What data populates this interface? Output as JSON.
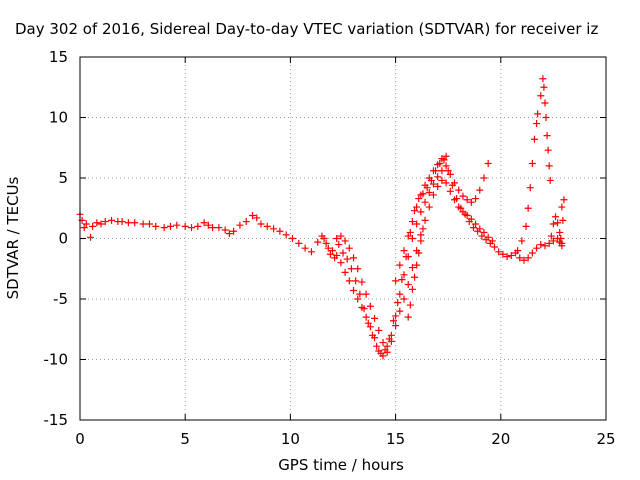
{
  "chart_data": {
    "type": "scatter",
    "title": "Day 302 of 2016, Sidereal Day-to-day VTEC variation (SDTVAR) for receiver iz",
    "xlabel": "GPS time / hours",
    "ylabel": "SDTVAR / TECUs",
    "xlim": [
      0,
      25
    ],
    "ylim": [
      -15,
      15
    ],
    "xticks": [
      "0",
      "5",
      "10",
      "15",
      "20",
      "25"
    ],
    "yticks": [
      "15",
      "10",
      "5",
      "0",
      "-5",
      "-10",
      "-15"
    ],
    "grid": true,
    "marker": "+",
    "color": "#ff0000",
    "series": [
      {
        "points": [
          [
            0.0,
            2.0
          ],
          [
            0.1,
            1.5
          ],
          [
            0.2,
            0.9
          ],
          [
            0.3,
            1.2
          ],
          [
            0.5,
            0.1
          ],
          [
            0.6,
            1.0
          ],
          [
            0.8,
            1.3
          ],
          [
            1.0,
            1.2
          ],
          [
            1.2,
            1.4
          ],
          [
            1.5,
            1.5
          ],
          [
            1.8,
            1.4
          ],
          [
            2.0,
            1.4
          ],
          [
            2.3,
            1.3
          ],
          [
            2.6,
            1.3
          ],
          [
            3.0,
            1.2
          ],
          [
            3.3,
            1.2
          ],
          [
            3.6,
            1.0
          ],
          [
            4.0,
            0.9
          ],
          [
            4.3,
            1.0
          ],
          [
            4.6,
            1.1
          ],
          [
            5.0,
            1.0
          ],
          [
            5.3,
            0.9
          ],
          [
            5.6,
            1.0
          ],
          [
            5.9,
            1.3
          ],
          [
            6.1,
            1.1
          ],
          [
            6.3,
            0.9
          ],
          [
            6.6,
            0.9
          ],
          [
            6.9,
            0.7
          ],
          [
            7.1,
            0.4
          ],
          [
            7.3,
            0.6
          ],
          [
            7.6,
            1.1
          ],
          [
            7.9,
            1.4
          ],
          [
            8.2,
            1.9
          ],
          [
            8.4,
            1.7
          ],
          [
            8.6,
            1.2
          ],
          [
            8.9,
            1.0
          ],
          [
            9.2,
            0.8
          ],
          [
            9.5,
            0.6
          ],
          [
            9.8,
            0.3
          ],
          [
            10.1,
            0.0
          ],
          [
            10.4,
            -0.4
          ],
          [
            10.7,
            -0.8
          ],
          [
            11.0,
            -1.1
          ],
          [
            11.3,
            -0.3
          ],
          [
            11.5,
            0.2
          ],
          [
            11.7,
            -0.4
          ],
          [
            11.9,
            -1.3
          ],
          [
            12.1,
            -1.6
          ],
          [
            12.3,
            -0.5
          ],
          [
            12.5,
            -1.2
          ],
          [
            12.7,
            -1.7
          ],
          [
            12.9,
            -2.5
          ],
          [
            13.1,
            -3.5
          ],
          [
            13.3,
            -4.6
          ],
          [
            13.5,
            -5.8
          ],
          [
            13.7,
            -7.0
          ],
          [
            13.9,
            -8.0
          ],
          [
            14.1,
            -8.9
          ],
          [
            14.3,
            -9.5
          ],
          [
            14.5,
            -9.2
          ],
          [
            14.7,
            -8.3
          ],
          [
            14.9,
            -6.8
          ],
          [
            15.1,
            -5.3
          ],
          [
            15.3,
            -3.4
          ],
          [
            15.5,
            -1.5
          ],
          [
            15.7,
            0.5
          ],
          [
            15.9,
            2.3
          ],
          [
            16.1,
            3.3
          ],
          [
            16.3,
            3.7
          ],
          [
            16.5,
            4.2
          ],
          [
            16.7,
            4.8
          ],
          [
            16.9,
            5.6
          ],
          [
            17.1,
            6.2
          ],
          [
            17.3,
            6.5
          ],
          [
            17.5,
            5.6
          ],
          [
            17.7,
            4.4
          ],
          [
            17.9,
            3.3
          ],
          [
            18.1,
            2.5
          ],
          [
            18.3,
            2.0
          ],
          [
            18.5,
            1.4
          ],
          [
            18.7,
            0.9
          ],
          [
            18.9,
            0.6
          ],
          [
            19.1,
            0.2
          ],
          [
            19.3,
            -0.1
          ],
          [
            19.5,
            -0.4
          ],
          [
            19.7,
            -0.7
          ],
          [
            19.9,
            -1.1
          ],
          [
            20.1,
            -1.3
          ],
          [
            20.3,
            -1.5
          ],
          [
            20.5,
            -1.4
          ],
          [
            20.7,
            -1.2
          ],
          [
            20.9,
            -1.6
          ],
          [
            21.1,
            -1.8
          ],
          [
            21.3,
            -1.6
          ],
          [
            21.5,
            -1.2
          ],
          [
            21.7,
            -0.8
          ],
          [
            21.9,
            -0.5
          ],
          [
            22.1,
            -0.6
          ],
          [
            22.3,
            -0.4
          ],
          [
            22.5,
            -0.2
          ],
          [
            22.7,
            0.0
          ],
          [
            22.9,
            -0.4
          ]
        ]
      },
      {
        "points": [
          [
            11.6,
            0.0
          ],
          [
            11.8,
            -0.8
          ],
          [
            12.0,
            -1.0
          ],
          [
            12.2,
            -1.4
          ],
          [
            12.4,
            -2.0
          ],
          [
            12.6,
            -2.8
          ],
          [
            12.8,
            -3.5
          ],
          [
            13.0,
            -4.3
          ],
          [
            13.2,
            -5.0
          ],
          [
            13.4,
            -5.7
          ],
          [
            13.6,
            -6.5
          ],
          [
            13.8,
            -7.3
          ],
          [
            14.0,
            -8.2
          ],
          [
            14.2,
            -9.3
          ],
          [
            14.4,
            -9.7
          ],
          [
            14.6,
            -9.4
          ],
          [
            14.8,
            -8.5
          ],
          [
            15.0,
            -7.2
          ],
          [
            15.2,
            -6.0
          ],
          [
            15.4,
            -5.0
          ],
          [
            15.6,
            -3.8
          ],
          [
            15.8,
            -2.4
          ],
          [
            16.0,
            -1.0
          ],
          [
            16.2,
            0.3
          ],
          [
            16.4,
            1.5
          ],
          [
            16.6,
            2.6
          ],
          [
            16.8,
            3.6
          ],
          [
            17.0,
            4.3
          ],
          [
            17.2,
            4.8
          ],
          [
            17.4,
            4.6
          ],
          [
            17.6,
            3.9
          ],
          [
            17.8,
            3.2
          ],
          [
            18.0,
            2.6
          ],
          [
            18.2,
            2.2
          ],
          [
            18.4,
            1.9
          ],
          [
            18.6,
            1.6
          ],
          [
            18.8,
            1.2
          ],
          [
            19.0,
            0.8
          ],
          [
            19.2,
            0.5
          ],
          [
            19.4,
            0.1
          ],
          [
            19.6,
            -0.2
          ]
        ]
      },
      {
        "points": [
          [
            12.2,
            0.0
          ],
          [
            12.4,
            0.2
          ],
          [
            12.6,
            -0.2
          ],
          [
            12.8,
            -0.8
          ],
          [
            13.0,
            -1.6
          ],
          [
            13.2,
            -2.5
          ],
          [
            13.4,
            -3.6
          ],
          [
            13.6,
            -4.6
          ],
          [
            13.8,
            -5.6
          ],
          [
            14.0,
            -6.6
          ],
          [
            14.2,
            -7.6
          ],
          [
            14.4,
            -8.6
          ],
          [
            14.6,
            -8.9
          ],
          [
            14.8,
            -8.0
          ],
          [
            15.0,
            -6.4
          ],
          [
            15.2,
            -4.6
          ],
          [
            15.4,
            -3.0
          ],
          [
            15.6,
            -1.5
          ],
          [
            15.8,
            0.0
          ],
          [
            16.0,
            1.2
          ],
          [
            16.2,
            2.2
          ],
          [
            16.4,
            3.0
          ],
          [
            16.6,
            3.8
          ],
          [
            16.8,
            4.5
          ],
          [
            17.0,
            5.1
          ],
          [
            17.2,
            5.6
          ],
          [
            17.4,
            6.0
          ],
          [
            17.6,
            5.3
          ],
          [
            17.8,
            4.6
          ],
          [
            18.0,
            4.0
          ],
          [
            18.2,
            3.5
          ],
          [
            18.4,
            3.2
          ],
          [
            18.6,
            3.0
          ],
          [
            18.8,
            3.3
          ],
          [
            19.0,
            4.0
          ],
          [
            19.2,
            5.0
          ],
          [
            19.4,
            6.2
          ]
        ]
      },
      {
        "points": [
          [
            15.0,
            -3.5
          ],
          [
            15.2,
            -2.2
          ],
          [
            15.4,
            -1.0
          ],
          [
            15.6,
            0.2
          ],
          [
            15.8,
            1.4
          ],
          [
            16.0,
            2.6
          ],
          [
            16.2,
            3.6
          ],
          [
            16.4,
            4.4
          ],
          [
            16.6,
            5.0
          ],
          [
            16.8,
            5.6
          ],
          [
            17.0,
            6.1
          ],
          [
            17.2,
            6.6
          ],
          [
            17.4,
            6.8
          ]
        ]
      },
      {
        "points": [
          [
            15.6,
            -6.5
          ],
          [
            15.7,
            -5.5
          ],
          [
            15.8,
            -4.2
          ],
          [
            15.9,
            -3.2
          ],
          [
            16.0,
            -2.2
          ],
          [
            16.1,
            -1.2
          ],
          [
            16.2,
            -0.2
          ],
          [
            16.3,
            0.8
          ]
        ]
      },
      {
        "points": [
          [
            20.8,
            -1.0
          ],
          [
            21.0,
            -0.2
          ],
          [
            21.2,
            1.0
          ],
          [
            21.3,
            2.5
          ],
          [
            21.4,
            4.2
          ],
          [
            21.5,
            6.2
          ],
          [
            21.6,
            8.2
          ],
          [
            21.7,
            9.5
          ],
          [
            21.75,
            10.3
          ]
        ]
      },
      {
        "points": [
          [
            21.9,
            11.8
          ],
          [
            22.0,
            13.2
          ],
          [
            22.05,
            12.5
          ],
          [
            22.1,
            11.2
          ],
          [
            22.15,
            10.0
          ],
          [
            22.2,
            8.5
          ],
          [
            22.25,
            7.3
          ],
          [
            22.3,
            6.0
          ],
          [
            22.35,
            4.8
          ]
        ]
      },
      {
        "points": [
          [
            22.4,
            0.2
          ],
          [
            22.5,
            1.2
          ],
          [
            22.6,
            1.8
          ],
          [
            22.7,
            1.3
          ],
          [
            22.8,
            0.5
          ],
          [
            22.85,
            0.0
          ],
          [
            22.9,
            -0.6
          ],
          [
            22.95,
            1.5
          ],
          [
            23.0,
            3.2
          ],
          [
            22.9,
            2.6
          ],
          [
            22.8,
            -0.3
          ]
        ]
      }
    ]
  }
}
